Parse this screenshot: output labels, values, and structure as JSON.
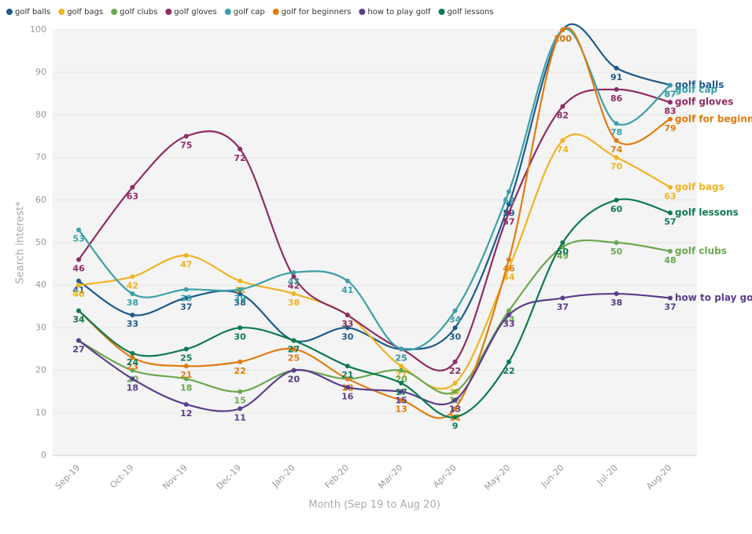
{
  "chart_data": {
    "type": "line",
    "x_label": "Month (Sep 19 to Aug 20)",
    "y_label": "Search interest*",
    "categories": [
      "Sep-19",
      "Oct-19",
      "Nov-19",
      "Dec-19",
      "Jan-20",
      "Feb-20",
      "Mar-20",
      "Apr-20",
      "May-20",
      "Jun-20",
      "Jul-20",
      "Aug-20"
    ],
    "ylim": [
      0,
      100
    ],
    "yticks": [
      0,
      10,
      20,
      30,
      40,
      50,
      60,
      70,
      80,
      90,
      100
    ],
    "grid": true,
    "series": [
      {
        "name": "golf balls",
        "color": "#1d5b8c",
        "values": [
          41,
          33,
          37,
          38,
          27,
          30,
          25,
          30,
          59,
          100,
          91,
          87
        ]
      },
      {
        "name": "golf bags",
        "color": "#f0b323",
        "values": [
          40,
          42,
          47,
          41,
          38,
          33,
          21,
          17,
          44,
          74,
          70,
          63
        ]
      },
      {
        "name": "golf clubs",
        "color": "#6aa84f",
        "values": [
          27,
          20,
          18,
          15,
          20,
          18,
          20,
          15,
          34,
          49,
          50,
          48
        ]
      },
      {
        "name": "golf gloves",
        "color": "#8e2c64",
        "values": [
          46,
          63,
          75,
          72,
          42,
          33,
          25,
          22,
          57,
          82,
          86,
          83
        ]
      },
      {
        "name": "golf cap",
        "color": "#3aa0a8",
        "values": [
          53,
          38,
          39,
          39,
          43,
          41,
          25,
          34,
          62,
          100,
          78,
          87
        ]
      },
      {
        "name": "golf for beginners",
        "color": "#e07b10",
        "values": [
          34,
          23,
          21,
          22,
          25,
          18,
          13,
          11,
          46,
          100,
          74,
          79
        ]
      },
      {
        "name": "how to play golf",
        "color": "#5a3d8c",
        "values": [
          27,
          18,
          12,
          11,
          20,
          16,
          15,
          13,
          33,
          37,
          38,
          37
        ]
      },
      {
        "name": "golf lessons",
        "color": "#0f7a50",
        "values": [
          34,
          24,
          25,
          30,
          27,
          21,
          17,
          9,
          22,
          50,
          60,
          57
        ]
      }
    ]
  }
}
